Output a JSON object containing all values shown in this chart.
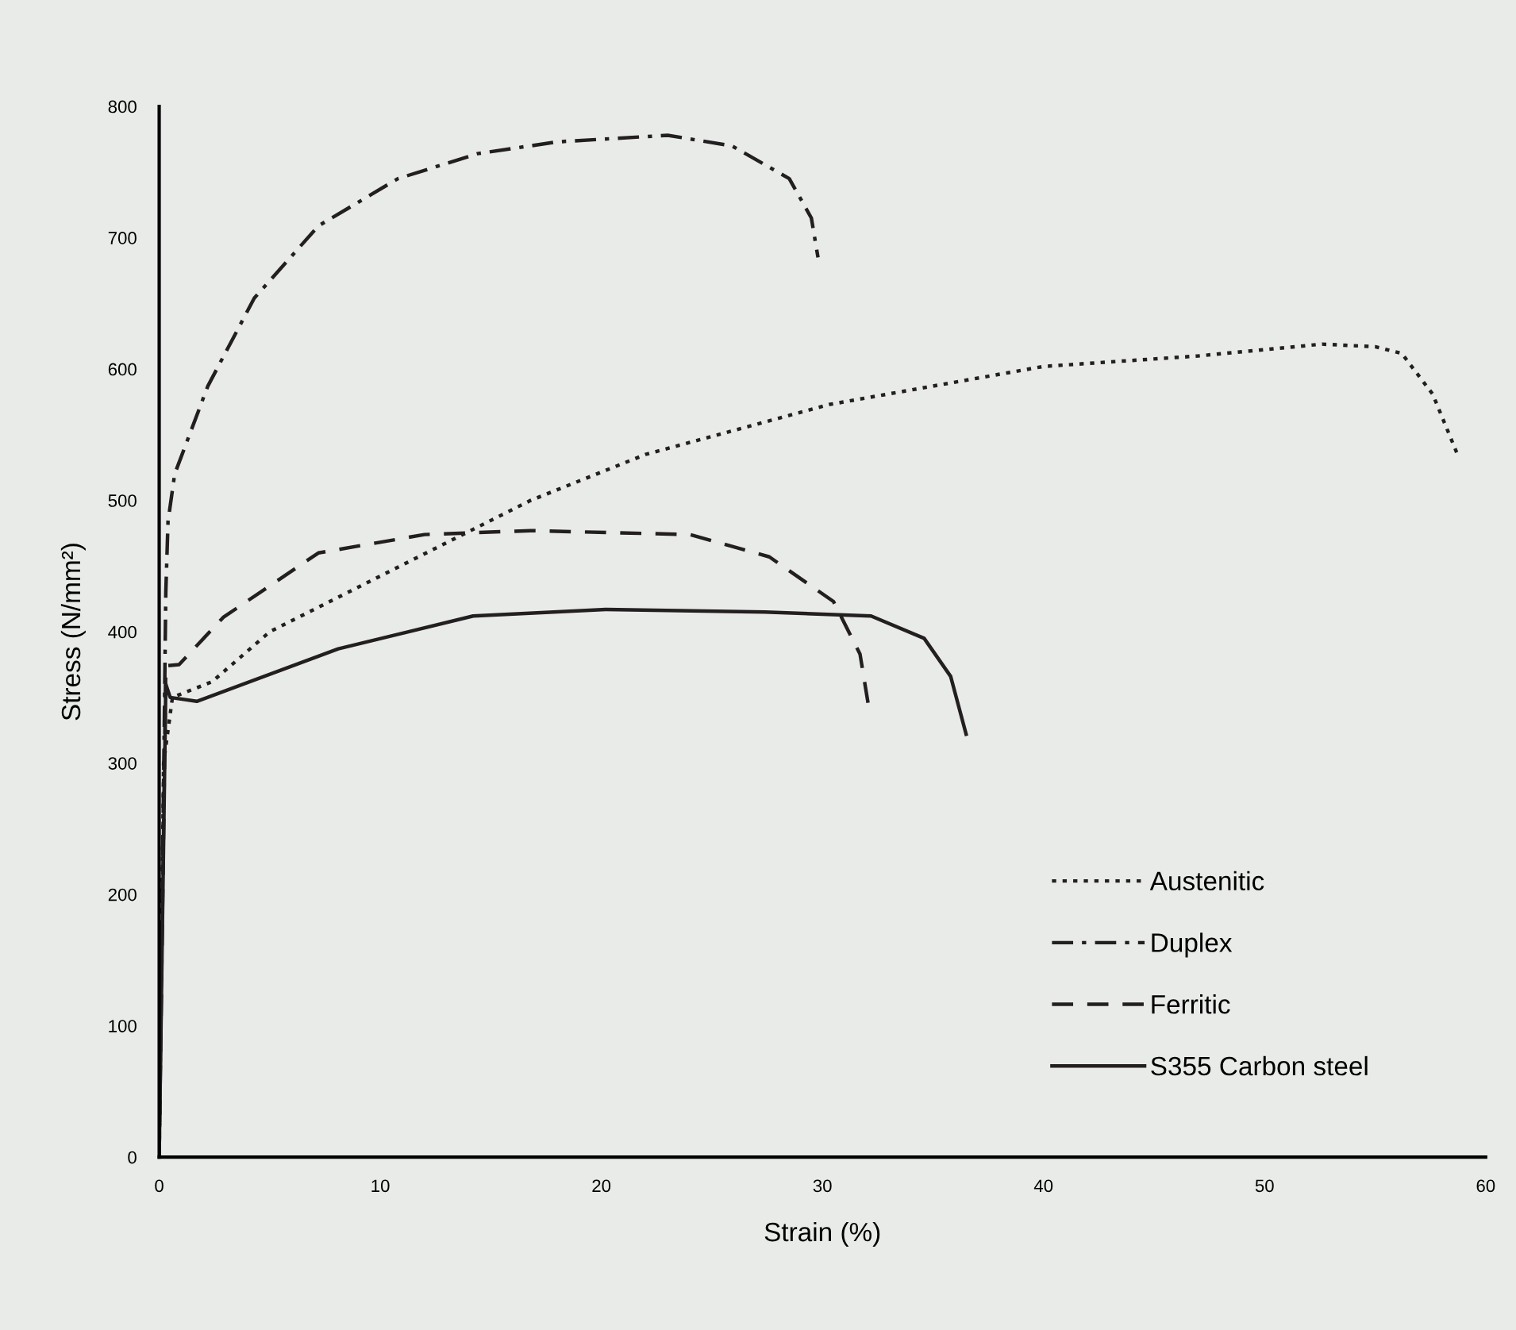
{
  "chart_data": {
    "type": "line",
    "xlabel": "Strain (%)",
    "ylabel": "Stress (N/mm²)",
    "xlim": [
      0,
      60
    ],
    "ylim": [
      0,
      800
    ],
    "xticks": [
      0,
      10,
      20,
      30,
      40,
      50,
      60
    ],
    "yticks": [
      0,
      100,
      200,
      300,
      400,
      500,
      600,
      700,
      800
    ],
    "grid": false,
    "legend": "bottom right",
    "marker": "none",
    "series": [
      {
        "name": "Austenitic",
        "color": "#231f20",
        "line_style": "dotted",
        "x": [
          0,
          0.2,
          0.6,
          2.4,
          5,
          9.6,
          16.8,
          22,
          30.3,
          40,
          47,
          52.6,
          55,
          56.2,
          57.6,
          58.7
        ],
        "values": [
          0,
          300,
          350,
          362,
          400,
          439,
          500,
          535,
          573,
          602,
          610,
          619,
          617,
          612,
          581,
          536
        ]
      },
      {
        "name": "Duplex",
        "color": "#231f20",
        "line_style": "dashdot",
        "x": [
          0,
          0.3,
          0.4,
          0.7,
          2.2,
          4.3,
          7.2,
          10.8,
          14.4,
          18,
          23,
          25.9,
          28.5,
          29.5,
          29.8
        ],
        "values": [
          0,
          430,
          484,
          520,
          587,
          654,
          709,
          745,
          764,
          773,
          778,
          770,
          745,
          715,
          685
        ]
      },
      {
        "name": "Ferritic",
        "color": "#231f20",
        "line_style": "dashed",
        "x": [
          0,
          0.3,
          0.9,
          2.9,
          7.2,
          12,
          16.8,
          24,
          27.6,
          30.5,
          31.7,
          32.1
        ],
        "values": [
          0,
          374,
          375,
          411,
          460,
          474,
          477,
          474,
          457,
          423,
          383,
          342
        ]
      },
      {
        "name": "S355 Carbon steel",
        "color": "#231f20",
        "line_style": "solid",
        "x": [
          0,
          0.3,
          0.5,
          1.7,
          8.1,
          14.2,
          20.2,
          27.4,
          32.2,
          34.6,
          35.8,
          36.5
        ],
        "values": [
          0,
          360,
          350,
          347,
          387,
          412,
          417,
          415,
          412,
          395,
          366,
          322
        ]
      }
    ]
  }
}
